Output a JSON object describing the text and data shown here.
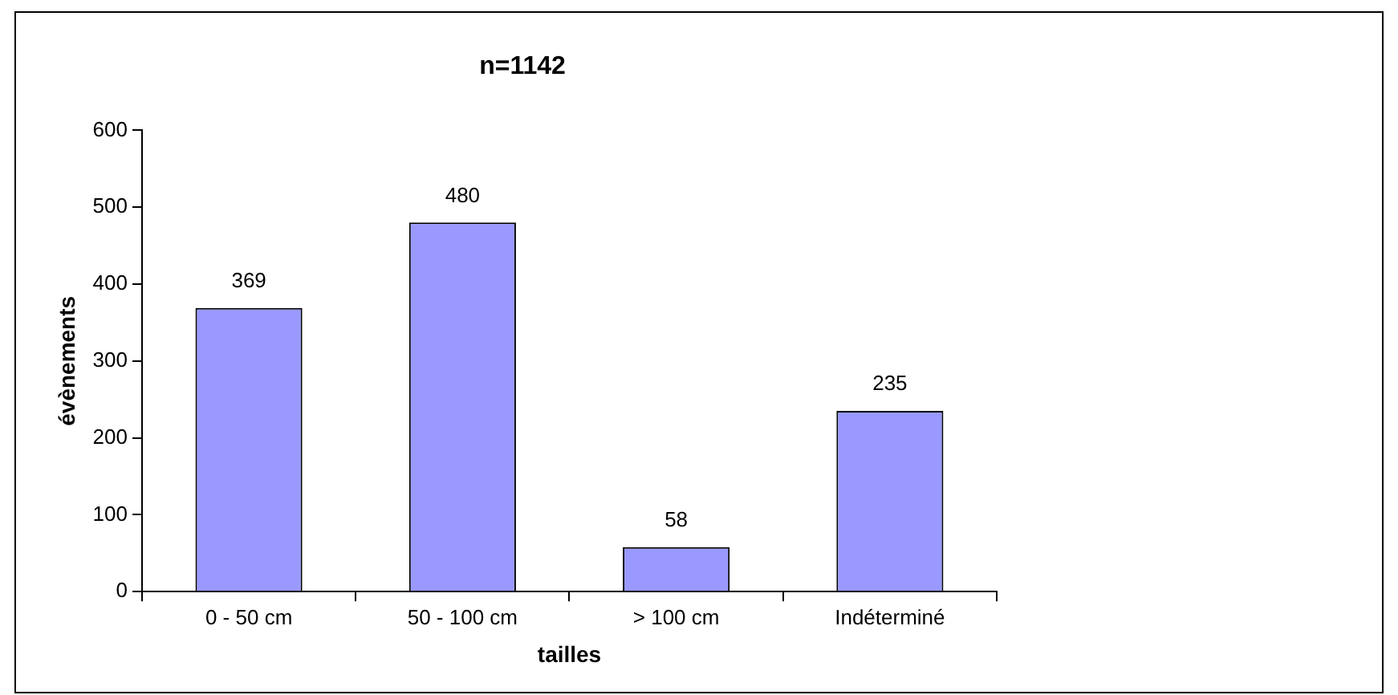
{
  "chart_data": {
    "type": "bar",
    "title": "n=1142",
    "xlabel": "tailles",
    "ylabel": "évènements",
    "categories": [
      "0 - 50 cm",
      "50 - 100 cm",
      "> 100 cm",
      "Indéterminé"
    ],
    "values": [
      369,
      480,
      58,
      235
    ],
    "color": "#9999ff",
    "ylim": [
      0,
      600
    ],
    "yticks": [
      0,
      100,
      200,
      300,
      400,
      500,
      600
    ],
    "grid": false,
    "legend": false,
    "data_labels": true
  }
}
